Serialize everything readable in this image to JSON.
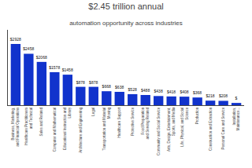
{
  "chart_data": {
    "type": "bar",
    "title": "$2.45 trillion annual",
    "subtitle": "automation opportunity across industries",
    "categories": [
      "Business, Marketing,\nand Financial Operations",
      "Healthcare Practitioners\nand Technical",
      "Sales and Related",
      "Computer and Mathematical",
      "Educational Instruction and\nLibrary",
      "Architecture and Engineering",
      "Legal",
      "Transportation and Material\nMoving",
      "Healthcare Support",
      "Protective Service",
      "Food Preparation\nand Serving Related",
      "Community and Social Service",
      "Arts, Design, Entertainment,\nSports, and Media",
      "Life, Physical, and Social\nScience",
      "Production",
      "Construction and Extraction",
      "Personal Care and Service",
      "Installation,\nMaintenance..."
    ],
    "values": [
      2928,
      2458,
      2068,
      1578,
      1458,
      878,
      878,
      668,
      638,
      528,
      488,
      438,
      418,
      408,
      368,
      218,
      208,
      108
    ],
    "value_labels": [
      "$2928",
      "$2458",
      "$2068",
      "$1578",
      "$1458",
      "$878",
      "$878",
      "$668",
      "$638",
      "$528",
      "$488",
      "$438",
      "$418",
      "$408",
      "$368",
      "$218",
      "$208",
      "$"
    ],
    "color": "#1133cc",
    "ylim": [
      0,
      3600
    ],
    "grid": false,
    "data_labels": true,
    "tick_labels": "x"
  }
}
